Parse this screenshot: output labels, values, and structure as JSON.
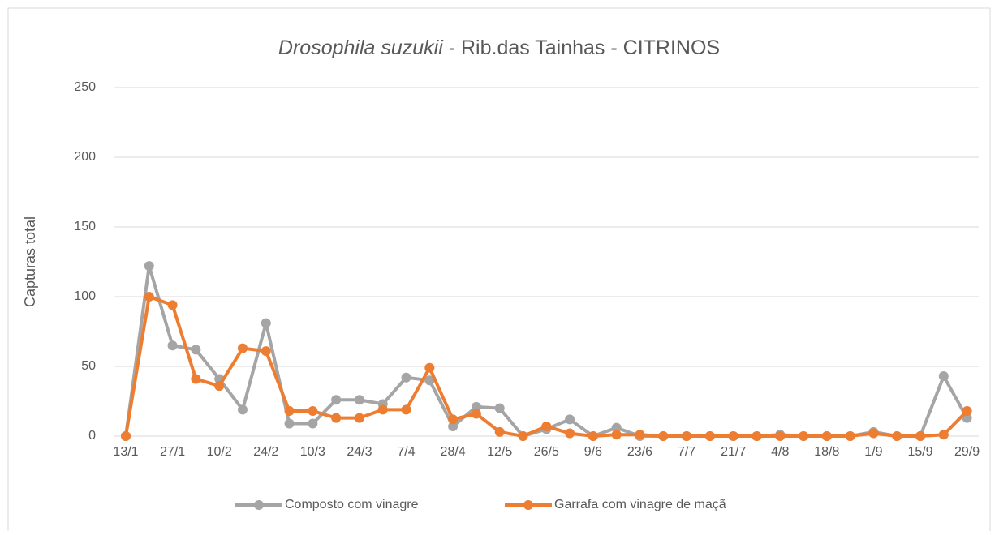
{
  "chart_data": {
    "type": "line",
    "title_italic": "Drosophila suzukii",
    "title": " - Rib.das Tainhas - CITRINOS",
    "y_label": "Capturas total",
    "categories": [
      "13/1",
      null,
      "27/1",
      null,
      "10/2",
      null,
      "24/2",
      null,
      "10/3",
      null,
      "24/3",
      null,
      "7/4",
      null,
      "28/4",
      null,
      "12/5",
      null,
      "26/5",
      null,
      "9/6",
      null,
      "23/6",
      null,
      "7/7",
      null,
      "21/7",
      null,
      "4/8",
      null,
      "18/8",
      null,
      "1/9",
      null,
      "15/9",
      null,
      "29/9"
    ],
    "series": [
      {
        "name": "Composto com vinagre",
        "color": "#a5a5a5",
        "values": [
          0,
          122,
          65,
          62,
          41,
          19,
          81,
          9,
          9,
          26,
          26,
          23,
          42,
          40,
          7,
          21,
          20,
          0,
          5,
          12,
          0,
          6,
          0,
          0,
          0,
          0,
          0,
          0,
          1,
          0,
          0,
          0,
          3,
          0,
          0,
          43,
          13
        ]
      },
      {
        "name": "Garrafa com vinagre de maçã",
        "color": "#ed7d31",
        "values": [
          0,
          100,
          94,
          41,
          36,
          63,
          61,
          18,
          18,
          13,
          13,
          19,
          19,
          49,
          12,
          16,
          3,
          0,
          7,
          2,
          0,
          1,
          1,
          0,
          0,
          0,
          0,
          0,
          0,
          0,
          0,
          0,
          2,
          0,
          0,
          1,
          18
        ]
      }
    ],
    "ylim": [
      0,
      250
    ],
    "yticks": [
      0,
      50,
      100,
      150,
      200,
      250
    ],
    "grid": true,
    "legend": "bottom"
  }
}
